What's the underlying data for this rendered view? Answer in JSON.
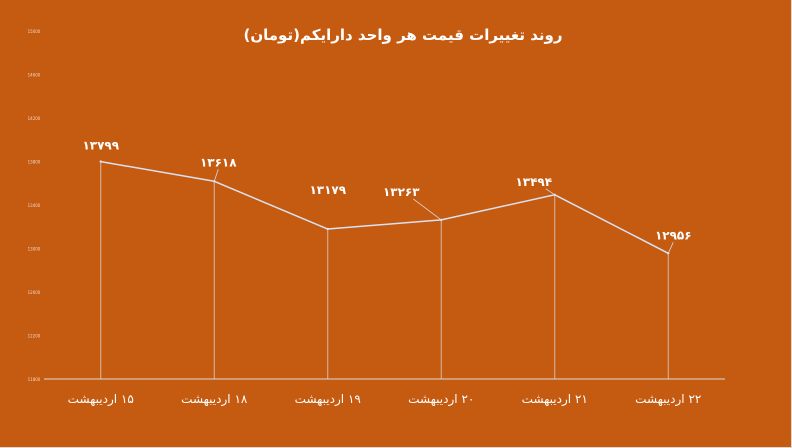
{
  "chart_data": {
    "type": "line",
    "title": "روند تغییرات قیمت هر واحد دارایکم(تومان)",
    "categories": [
      "۱۵ اردیبهشت",
      "۱۸ اردیبهشت",
      "۱۹ اردیبهشت",
      "۲۰ اردیبهشت",
      "۲۱ اردیبهشت",
      "۲۲ اردیبهشت"
    ],
    "values": [
      13799,
      13618,
      13179,
      13263,
      13494,
      12956
    ],
    "data_labels": [
      "۱۳۷۹۹",
      "۱۳۶۱۸",
      "۱۳۱۷۹",
      "۱۳۲۶۳",
      "۱۳۴۹۴",
      "۱۲۹۵۶"
    ],
    "yticks": [
      11800,
      12200,
      12600,
      13000,
      13400,
      13800,
      14200,
      14600,
      15000
    ],
    "ylim": [
      11800,
      15000
    ],
    "grid": false,
    "drop_lines": true,
    "legend": "none",
    "colors": {
      "background": "#c55a11",
      "line": "#d9e2f3",
      "text": "#ffffff"
    }
  }
}
